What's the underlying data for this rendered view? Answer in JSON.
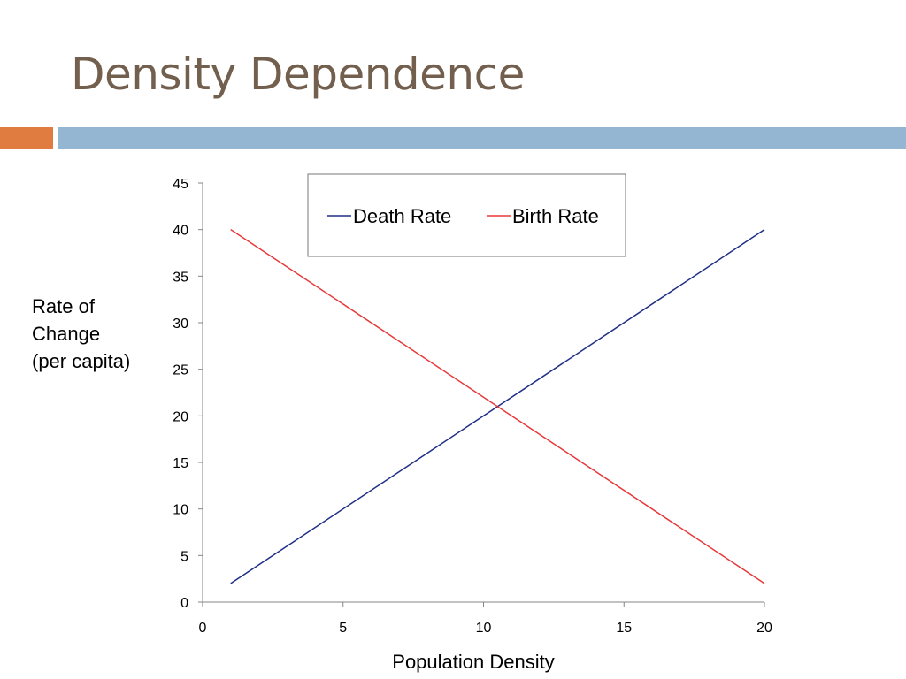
{
  "slide": {
    "title": "Density Dependence",
    "title_color": "#735f4d",
    "accent_left_color": "#e07c3f",
    "accent_right_color": "#94b6d2"
  },
  "chart_data": {
    "type": "line",
    "title": "",
    "xlabel": "Population Density",
    "ylabel": "Rate of\nChange\n(per capita)",
    "xlim": [
      0,
      20
    ],
    "ylim": [
      0,
      45
    ],
    "xticks": [
      0,
      5,
      10,
      15,
      20
    ],
    "yticks": [
      0,
      5,
      10,
      15,
      20,
      25,
      30,
      35,
      40,
      45
    ],
    "grid": false,
    "legend_position": "top",
    "series": [
      {
        "name": "Death Rate",
        "color": "#1f2e86",
        "x": [
          1,
          20
        ],
        "y": [
          2,
          40
        ]
      },
      {
        "name": "Birth Rate",
        "color": "#e8393a",
        "x": [
          1,
          20
        ],
        "y": [
          40,
          2
        ]
      }
    ]
  }
}
